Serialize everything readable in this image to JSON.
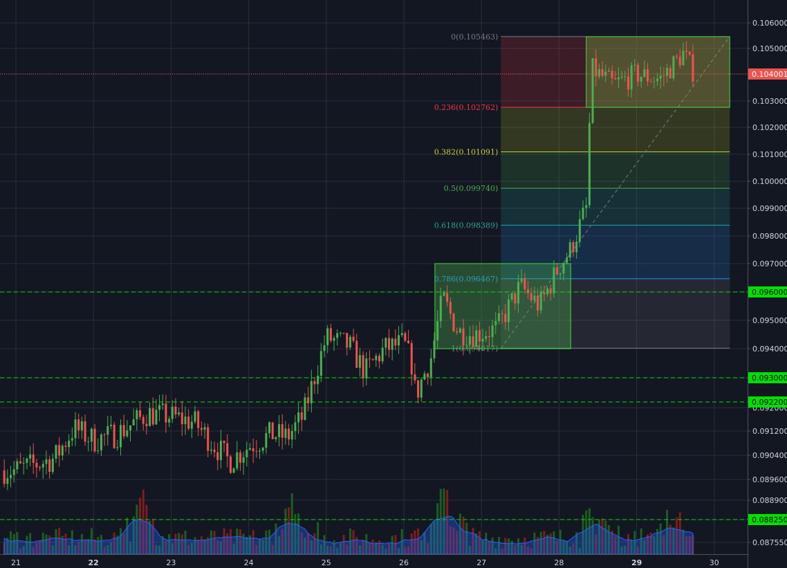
{
  "chart_data": {
    "type": "candlestick",
    "x_ticks": [
      "21",
      "22",
      "23",
      "24",
      "25",
      "26",
      "27",
      "28",
      "29",
      "30"
    ],
    "bold_x_ticks": [
      "22",
      "29"
    ],
    "y_ticks": [
      "0.106000",
      "0.105000",
      "0.104000",
      "0.103000",
      "0.102000",
      "0.101000",
      "0.100000",
      "0.099000",
      "0.098000",
      "0.097000",
      "0.096000",
      "0.095000",
      "0.094000",
      "0.093000",
      "0.092000",
      "0.091200",
      "0.090400",
      "0.089600",
      "0.088900",
      "0.088250",
      "0.087550"
    ],
    "current_price": {
      "label": "0.104001",
      "value": 0.104001,
      "color": "#ef5350"
    },
    "horizontal_lines": [
      {
        "label": "0.096000",
        "value": 0.096,
        "color": "#00e000"
      },
      {
        "label": "0.093000",
        "value": 0.093,
        "color": "#00e000"
      },
      {
        "label": "0.092200",
        "value": 0.0922,
        "color": "#00e000"
      },
      {
        "label": "0.088250",
        "value": 0.08825,
        "color": "#00e000"
      }
    ],
    "fibonacci_retracement": {
      "levels": [
        {
          "label": "0(0.105463)",
          "ratio": 0,
          "price": 0.105463,
          "color": "#787b86"
        },
        {
          "label": "0.236(0.102762)",
          "ratio": 0.236,
          "price": 0.102762,
          "color": "#f23645"
        },
        {
          "label": "0.382(0.101091)",
          "ratio": 0.382,
          "price": 0.101091,
          "color": "#c8d22e"
        },
        {
          "label": "0.5(0.099740)",
          "ratio": 0.5,
          "price": 0.09974,
          "color": "#4caf50"
        },
        {
          "label": "0.618(0.098389)",
          "ratio": 0.618,
          "price": 0.098389,
          "color": "#26a69a"
        },
        {
          "label": "0.786(0.096467)",
          "ratio": 0.786,
          "price": 0.096467,
          "color": "#2196f3"
        },
        {
          "label": "1(0.094017)",
          "ratio": 1,
          "price": 0.094017,
          "color": "#787b86"
        }
      ],
      "start_day": 27.25,
      "end_day": 30.2
    },
    "rectangles": [
      {
        "x_start": 26.4,
        "x_end": 28.15,
        "y_bottom": 0.094,
        "y_top": 0.097,
        "color": "#4caf50"
      },
      {
        "x_start": 28.35,
        "x_end": 30.2,
        "y_bottom": 0.10276,
        "y_top": 0.10546,
        "color": "#7cb342"
      }
    ],
    "candle_colors": {
      "up": "#4caf50",
      "down": "#ef5350"
    },
    "volume_colors": {
      "up": "#1b5e20",
      "down": "#7f1d1d",
      "area": "#2962ff"
    },
    "grid": true,
    "legend": "none"
  }
}
